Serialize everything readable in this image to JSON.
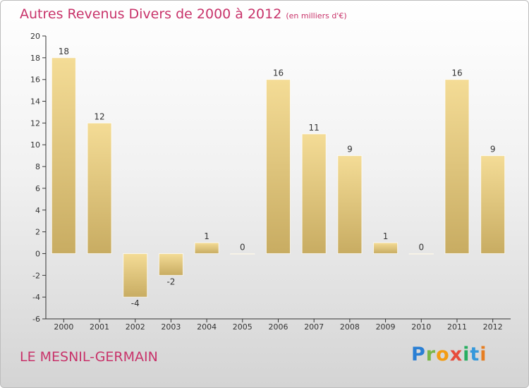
{
  "title": {
    "main": "Autres Revenus Divers de 2000 à 2012",
    "unit": "(en milliers d'€)"
  },
  "location": "LE MESNIL-GERMAIN",
  "brand": {
    "letters": [
      "P",
      "r",
      "o",
      "x",
      "i",
      "t",
      "i"
    ],
    "colors": [
      "#2a7fd4",
      "#7ab648",
      "#f39c12",
      "#e74c3c",
      "#27ae60",
      "#3498db",
      "#e67e22"
    ]
  },
  "colors": {
    "accent": "#c8336a",
    "bar_light": "#f4dc96",
    "bar_dark": "#c8ac62",
    "axis": "#333333"
  },
  "chart_data": {
    "type": "bar",
    "categories": [
      "2000",
      "2001",
      "2002",
      "2003",
      "2004",
      "2005",
      "2006",
      "2007",
      "2008",
      "2009",
      "2010",
      "2011",
      "2012"
    ],
    "values": [
      18,
      12,
      -4,
      -2,
      1,
      0,
      16,
      11,
      9,
      1,
      0,
      16,
      9
    ],
    "data_labels": [
      "18",
      "12",
      "-4",
      "-2",
      "1",
      "0",
      "16",
      "11",
      "9",
      "1",
      "0",
      "16",
      "9"
    ],
    "ylim": [
      -6,
      20
    ],
    "yticks": [
      -6,
      -4,
      -2,
      0,
      2,
      4,
      6,
      8,
      10,
      12,
      14,
      16,
      18,
      20
    ],
    "title": "Autres Revenus Divers de 2000 à 2012",
    "xlabel": "",
    "ylabel": "",
    "grid": false,
    "legend": "none"
  }
}
